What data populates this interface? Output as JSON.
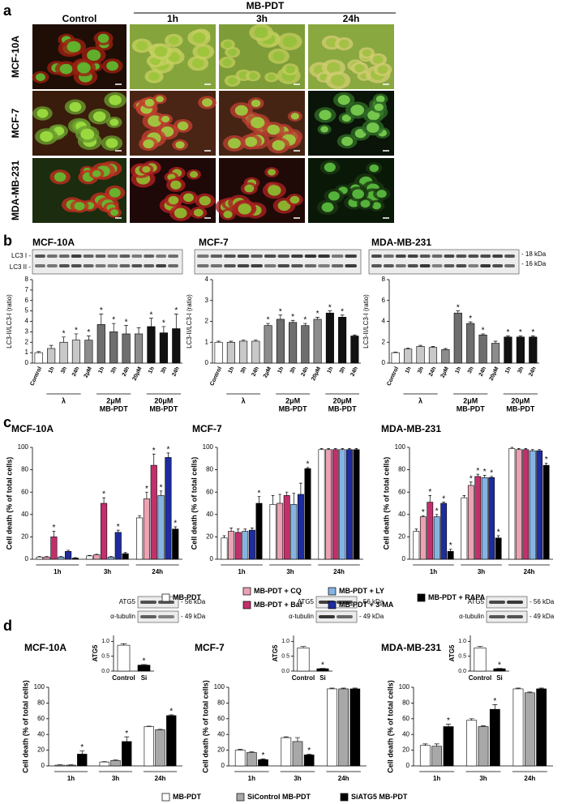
{
  "figure": {
    "panel_labels": [
      "a",
      "b",
      "c",
      "d"
    ],
    "a": {
      "header": "MB-PDT",
      "columns": [
        "Control",
        "1h",
        "3h",
        "24h"
      ],
      "rows": [
        "MCF-10A",
        "MCF-7",
        "MDA-MB-231"
      ]
    },
    "b_blot": {
      "lc3_i": "LC3 I -",
      "lc3_ii": "LC3 II -",
      "kda_18": "- 18 kDa",
      "kda_16": "- 16 kDa"
    },
    "d_blot": {
      "atg5": "ATG5",
      "atg5_kda": "- 56 kDa",
      "tubulin": "α-tubulin",
      "tubulin_kda": "- 49 kDa"
    }
  },
  "chart_data": [
    {
      "type": "bar",
      "title": "MCF-10A",
      "ylabel": "LC3-II/LC3-I (ratio)",
      "categories": [
        "Control",
        "1h",
        "3h",
        "24h",
        "2μM",
        "1h",
        "3h",
        "24h",
        "20μM",
        "1h",
        "3h",
        "24h"
      ],
      "values": [
        1,
        1.4,
        2.0,
        2.2,
        2.2,
        3.7,
        3.0,
        2.8,
        2.8,
        3.5,
        2.9,
        3.3
      ],
      "errors": [
        0.1,
        0.3,
        0.5,
        0.6,
        0.4,
        1.0,
        0.8,
        0.8,
        0.6,
        0.8,
        0.6,
        1.4
      ],
      "markers": [
        null,
        null,
        "*",
        "*",
        "*",
        "*",
        "*",
        "*",
        null,
        "*",
        "*",
        "*"
      ],
      "colors": [
        "#ffffff",
        "#c8c8c8",
        "#c8c8c8",
        "#c8c8c8",
        "#8c8c8c",
        "#6e6e6e",
        "#6e6e6e",
        "#6e6e6e",
        "#8c8c8c",
        "#111111",
        "#111111",
        "#111111"
      ],
      "group_labels": [
        [
          "λ"
        ],
        [
          "2μM",
          "MB-PDT"
        ],
        [
          "20μM",
          "MB-PDT"
        ]
      ],
      "ylim": [
        0,
        8
      ],
      "yticks": [
        0,
        1,
        2,
        3,
        4,
        5,
        6,
        7,
        8
      ]
    },
    {
      "type": "bar",
      "title": "MCF-7",
      "ylabel": "LC3-II/LC3-I (ratio)",
      "categories": [
        "Control",
        "1h",
        "3h",
        "24h",
        "2μM",
        "1h",
        "3h",
        "24h",
        "20μM",
        "1h",
        "3h",
        "24h"
      ],
      "values": [
        1.0,
        1.0,
        1.05,
        1.05,
        1.8,
        2.1,
        1.95,
        1.8,
        2.1,
        2.4,
        2.2,
        1.3
      ],
      "errors": [
        0.05,
        0.05,
        0.05,
        0.05,
        0.1,
        0.2,
        0.1,
        0.1,
        0.1,
        0.1,
        0.1,
        0.05
      ],
      "markers": [
        null,
        null,
        null,
        null,
        "*",
        "*",
        "*",
        "*",
        "*",
        "*",
        "*",
        null
      ],
      "colors": [
        "#ffffff",
        "#c8c8c8",
        "#c8c8c8",
        "#c8c8c8",
        "#8c8c8c",
        "#6e6e6e",
        "#6e6e6e",
        "#6e6e6e",
        "#8c8c8c",
        "#111111",
        "#111111",
        "#111111"
      ],
      "group_labels": [
        [
          "λ"
        ],
        [
          "2μM",
          "MB-PDT"
        ],
        [
          "20μM",
          "MB-PDT"
        ]
      ],
      "ylim": [
        0,
        4
      ],
      "yticks": [
        0,
        1,
        2,
        3,
        4
      ]
    },
    {
      "type": "bar",
      "title": "MDA-MB-231",
      "ylabel": "LC3-II/LC3-I (ratio)",
      "categories": [
        "Control",
        "1h",
        "3h",
        "24h",
        "2μM",
        "1h",
        "3h",
        "24h",
        "20μM",
        "1h",
        "3h",
        "24h"
      ],
      "values": [
        1.0,
        1.35,
        1.6,
        1.5,
        1.3,
        4.8,
        3.8,
        2.7,
        1.9,
        2.5,
        2.5,
        2.5
      ],
      "errors": [
        0.05,
        0.1,
        0.1,
        0.1,
        0.1,
        0.2,
        0.15,
        0.1,
        0.2,
        0.1,
        0.1,
        0.1
      ],
      "markers": [
        null,
        null,
        null,
        null,
        null,
        "*",
        "*",
        "*",
        null,
        "*",
        "*",
        "*"
      ],
      "colors": [
        "#ffffff",
        "#c8c8c8",
        "#c8c8c8",
        "#c8c8c8",
        "#8c8c8c",
        "#6e6e6e",
        "#6e6e6e",
        "#6e6e6e",
        "#8c8c8c",
        "#111111",
        "#111111",
        "#111111"
      ],
      "group_labels": [
        [
          "λ"
        ],
        [
          "2μM",
          "MB-PDT"
        ],
        [
          "20μM",
          "MB-PDT"
        ]
      ],
      "ylim": [
        0,
        8
      ],
      "yticks": [
        0,
        2,
        4,
        6,
        8
      ]
    },
    {
      "type": "bar",
      "title": "MCF-10A",
      "ylabel": "Cell death (% of total cells)",
      "categories": [
        "1h",
        "3h",
        "24h"
      ],
      "ylim": [
        0,
        100
      ],
      "yticks": [
        0,
        20,
        40,
        60,
        80,
        100
      ],
      "series": [
        {
          "name": "MB-PDT",
          "color": "#ffffff",
          "values": [
            2,
            3,
            37
          ],
          "errors": [
            0.5,
            0.5,
            2
          ]
        },
        {
          "name": "MB-PDT + CQ",
          "color": "#eaa2b4",
          "values": [
            2,
            4,
            54
          ],
          "errors": [
            0.5,
            0.5,
            6
          ],
          "markers": [
            null,
            null,
            "*"
          ]
        },
        {
          "name": "MB-PDT + Baf",
          "color": "#c2306c",
          "values": [
            20,
            50,
            84
          ],
          "errors": [
            5,
            5,
            10
          ],
          "markers": [
            "*",
            "*",
            "*"
          ]
        },
        {
          "name": "MB-PDT + LY",
          "color": "#86b4e2",
          "values": [
            2,
            2,
            57
          ],
          "errors": [
            0.5,
            0.5,
            4
          ],
          "markers": [
            null,
            null,
            "*"
          ]
        },
        {
          "name": "MB-PDT + 3-MA",
          "color": "#1e2c9e",
          "values": [
            7,
            24,
            91
          ],
          "errors": [
            1,
            2,
            4
          ],
          "markers": [
            null,
            "*",
            "*"
          ]
        },
        {
          "name": "MB-PDT + RAPA",
          "color": "#000000",
          "values": [
            1,
            5,
            27
          ],
          "errors": [
            0.5,
            1,
            2
          ],
          "markers": [
            null,
            null,
            "*"
          ]
        }
      ]
    },
    {
      "type": "bar",
      "title": "MCF-7",
      "ylabel": "Cell death (% of total cells)",
      "categories": [
        "1h",
        "3h",
        "24h"
      ],
      "ylim": [
        0,
        100
      ],
      "yticks": [
        0,
        20,
        40,
        60,
        80,
        100
      ],
      "series": [
        {
          "color": "#ffffff",
          "values": [
            19,
            49,
            98
          ],
          "errors": [
            2,
            8,
            1
          ]
        },
        {
          "color": "#eaa2b4",
          "values": [
            25,
            50,
            98
          ],
          "errors": [
            3,
            8,
            1
          ]
        },
        {
          "color": "#c2306c",
          "values": [
            24,
            57,
            98
          ],
          "errors": [
            3,
            3,
            1
          ]
        },
        {
          "color": "#86b4e2",
          "values": [
            25,
            49,
            98
          ],
          "errors": [
            2,
            10,
            1
          ]
        },
        {
          "color": "#1e2c9e",
          "values": [
            26,
            58,
            98
          ],
          "errors": [
            2,
            10,
            1
          ]
        },
        {
          "color": "#000000",
          "values": [
            50,
            81,
            98
          ],
          "errors": [
            6,
            1,
            1
          ],
          "markers": [
            "*",
            "*",
            null
          ]
        }
      ]
    },
    {
      "type": "bar",
      "title": "MDA-MB-231",
      "ylabel": "Cell death (% of total cells)",
      "categories": [
        "1h",
        "3h",
        "24h"
      ],
      "ylim": [
        0,
        100
      ],
      "yticks": [
        0,
        20,
        40,
        60,
        80,
        100
      ],
      "series": [
        {
          "color": "#ffffff",
          "values": [
            25,
            55,
            99
          ],
          "errors": [
            2,
            2,
            1
          ]
        },
        {
          "color": "#eaa2b4",
          "values": [
            38,
            66,
            98
          ],
          "errors": [
            1,
            3,
            1
          ],
          "markers": [
            "*",
            "*",
            null
          ]
        },
        {
          "color": "#c2306c",
          "values": [
            51,
            74,
            98
          ],
          "errors": [
            6,
            2,
            1
          ],
          "markers": [
            "*",
            "*",
            null
          ]
        },
        {
          "color": "#86b4e2",
          "values": [
            38,
            73,
            97
          ],
          "errors": [
            2,
            2,
            1
          ],
          "markers": [
            "*",
            "*",
            null
          ]
        },
        {
          "color": "#1e2c9e",
          "values": [
            50,
            73,
            97
          ],
          "errors": [
            1,
            1,
            1
          ],
          "markers": [
            "*",
            "*",
            null
          ]
        },
        {
          "color": "#000000",
          "values": [
            7,
            19,
            84
          ],
          "errors": [
            2,
            2,
            2
          ],
          "markers": [
            "*",
            "*",
            "*"
          ]
        }
      ]
    },
    {
      "type": "bar",
      "title": "MCF-10A",
      "ylabel": "Cell death (% of total cells)",
      "categories": [
        "1h",
        "3h",
        "24h"
      ],
      "ylim": [
        0,
        100
      ],
      "yticks": [
        0,
        20,
        40,
        60,
        80,
        100
      ],
      "series": [
        {
          "name": "MB-PDT",
          "color": "#ffffff",
          "values": [
            1,
            5,
            50
          ],
          "errors": [
            0.5,
            0.5,
            0.5
          ]
        },
        {
          "name": "SiControl MB-PDT",
          "color": "#a8a8a8",
          "values": [
            1,
            7,
            46
          ],
          "errors": [
            0.5,
            0.5,
            0.5
          ]
        },
        {
          "name": "SiATG5 MB-PDT",
          "color": "#000000",
          "values": [
            15,
            31,
            64
          ],
          "errors": [
            4,
            6,
            1
          ],
          "markers": [
            "*",
            "*",
            "*"
          ]
        }
      ]
    },
    {
      "type": "bar",
      "title": "MCF-7",
      "ylabel": "Cell death (% of total cells)",
      "categories": [
        "1h",
        "3h",
        "24h"
      ],
      "ylim": [
        0,
        100
      ],
      "yticks": [
        0,
        20,
        40,
        60,
        80,
        100
      ],
      "series": [
        {
          "color": "#ffffff",
          "values": [
            20,
            36,
            98
          ],
          "errors": [
            1,
            1,
            1
          ]
        },
        {
          "color": "#a8a8a8",
          "values": [
            17,
            31,
            98
          ],
          "errors": [
            1,
            5,
            1
          ]
        },
        {
          "color": "#000000",
          "values": [
            8,
            14,
            98
          ],
          "errors": [
            1,
            1,
            1
          ],
          "markers": [
            "*",
            "*",
            null
          ]
        }
      ]
    },
    {
      "type": "bar",
      "title": "MDA-MB-231",
      "ylabel": "Cell death (% of total cells)",
      "categories": [
        "1h",
        "3h",
        "24h"
      ],
      "ylim": [
        0,
        100
      ],
      "yticks": [
        0,
        20,
        40,
        60,
        80,
        100
      ],
      "series": [
        {
          "color": "#ffffff",
          "values": [
            26,
            58,
            98
          ],
          "errors": [
            2,
            2,
            1
          ]
        },
        {
          "color": "#a8a8a8",
          "values": [
            25,
            50,
            93
          ],
          "errors": [
            3,
            1,
            1
          ]
        },
        {
          "color": "#000000",
          "values": [
            50,
            72,
            98
          ],
          "errors": [
            3,
            6,
            1
          ],
          "markers": [
            "*",
            "*",
            null
          ]
        }
      ]
    },
    {
      "type": "bar",
      "ylabel": "ATG5",
      "categories": [
        "Control",
        "Si"
      ],
      "values": [
        0.87,
        0.2
      ],
      "errors": [
        0.05,
        0.02
      ],
      "markers": [
        null,
        "*"
      ],
      "colors": [
        "#ffffff",
        "#000000"
      ],
      "ylim": [
        0,
        1.2
      ],
      "yticks": [
        {
          "value": 0,
          "label": "0.0"
        },
        {
          "value": 0.5,
          "label": "0.5"
        },
        {
          "value": 1,
          "label": "1.0"
        }
      ]
    },
    {
      "type": "bar",
      "ylabel": "ATG5",
      "categories": [
        "Control",
        "Si"
      ],
      "values": [
        0.78,
        0.08
      ],
      "errors": [
        0.05,
        0.01
      ],
      "markers": [
        null,
        "*"
      ],
      "colors": [
        "#ffffff",
        "#000000"
      ],
      "ylim": [
        0,
        1.2
      ],
      "yticks": [
        {
          "value": 0,
          "label": "0.0"
        },
        {
          "value": 0.5,
          "label": "0.5"
        },
        {
          "value": 1,
          "label": "1.0"
        }
      ]
    },
    {
      "type": "bar",
      "ylabel": "ATG5",
      "categories": [
        "Control",
        "Si"
      ],
      "values": [
        0.78,
        0.08
      ],
      "errors": [
        0.05,
        0.01
      ],
      "markers": [
        null,
        "*"
      ],
      "colors": [
        "#ffffff",
        "#000000"
      ],
      "ylim": [
        0,
        1.2
      ],
      "yticks": [
        {
          "value": 0,
          "label": "0.0"
        },
        {
          "value": 0.5,
          "label": "0.5"
        },
        {
          "value": 1,
          "label": "1.0"
        }
      ]
    }
  ]
}
